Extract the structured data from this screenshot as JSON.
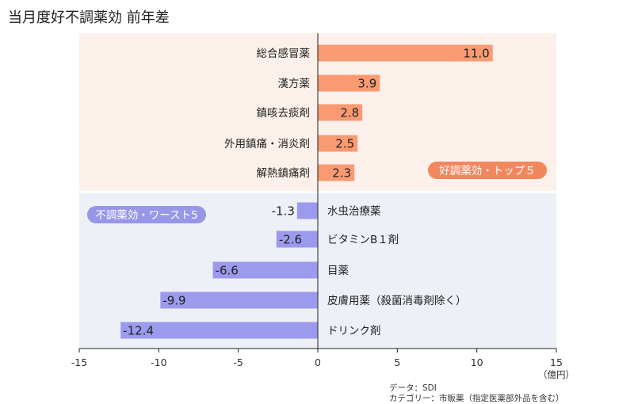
{
  "title": "当月度好不調薬効 前年差",
  "chart_data": {
    "type": "bar",
    "orientation": "horizontal",
    "xlim": [
      -15,
      15
    ],
    "x_ticks": [
      "-15",
      "-10",
      "-5",
      "0",
      "5",
      "10",
      "15"
    ],
    "unit": "（億円）",
    "groups": [
      {
        "label": "好調薬効・トップ５",
        "color": "#fa9a72",
        "background": "#fcf0ea",
        "badge_color": "#f2875e",
        "items": [
          {
            "category": "総合感冒薬",
            "value": 11.0,
            "label": "11.0"
          },
          {
            "category": "漢方薬",
            "value": 3.9,
            "label": "3.9"
          },
          {
            "category": "鎮咳去痰剤",
            "value": 2.8,
            "label": "2.8"
          },
          {
            "category": "外用鎮痛・消炎剤",
            "value": 2.5,
            "label": "2.5"
          },
          {
            "category": "解熱鎮痛剤",
            "value": 2.3,
            "label": "2.3"
          }
        ]
      },
      {
        "label": "不調薬効・ワースト5",
        "color": "#9c9aec",
        "background": "#eef0f7",
        "badge_color": "#9896e6",
        "items": [
          {
            "category": "水虫治療薬",
            "value": -1.3,
            "label": "-1.3"
          },
          {
            "category": "ビタミンB１剤",
            "value": -2.6,
            "label": "-2.6"
          },
          {
            "category": "目薬",
            "value": -6.6,
            "label": "-6.6"
          },
          {
            "category": "皮膚用薬（殺菌消毒剤除く）",
            "value": -9.9,
            "label": "-9.9"
          },
          {
            "category": "ドリンク剤",
            "value": -12.4,
            "label": "-12.4"
          }
        ]
      }
    ]
  },
  "source": {
    "line1": "データ：SDI",
    "line2": "カテゴリー：市販薬（指定医薬部外品を含む）"
  }
}
